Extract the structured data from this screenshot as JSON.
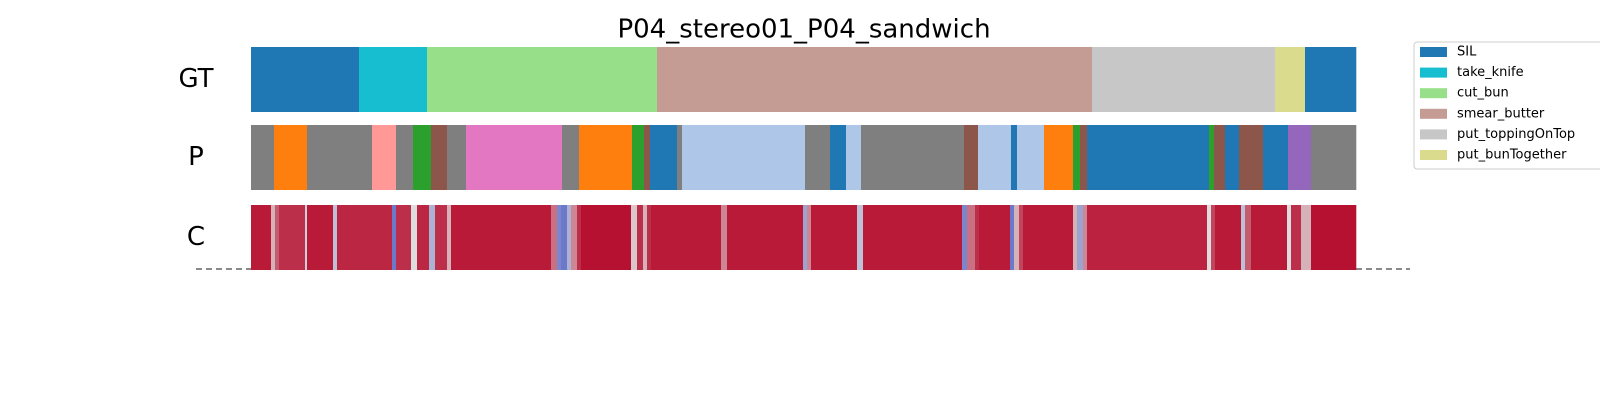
{
  "chart_data": {
    "type": "segmentation",
    "title": "P04_stereo01_P04_sandwich",
    "xlim": [
      0,
      1105
    ],
    "legend": [
      {
        "name": "SIL",
        "color": "#1f77b4"
      },
      {
        "name": "take_knife",
        "color": "#17becf"
      },
      {
        "name": "cut_bun",
        "color": "#98df8a"
      },
      {
        "name": "smear_butter",
        "color": "#c49c94"
      },
      {
        "name": "put_toppingOnTop",
        "color": "#c7c7c7"
      },
      {
        "name": "put_bunTogether",
        "color": "#dbdb8d"
      }
    ],
    "rows": [
      {
        "label": "GT",
        "boundaries": [
          0,
          108,
          176,
          406,
          841,
          1024,
          1054,
          1105
        ],
        "classes": [
          0,
          1,
          2,
          3,
          4,
          5,
          0
        ]
      },
      {
        "label": "P",
        "boundaries": [
          0,
          23,
          56,
          121,
          145,
          162,
          180,
          196,
          215,
          311,
          328,
          381,
          393,
          399,
          426,
          431,
          554,
          579,
          595,
          610,
          713,
          727,
          760,
          766,
          793,
          822,
          829,
          836,
          958,
          963,
          974,
          988,
          1012,
          1037,
          1060,
          1105
        ],
        "colors": [
          "#7f7f7f",
          "#ff7f0e",
          "#7f7f7f",
          "#ff9896",
          "#7f7f7f",
          "#2ca02c",
          "#8c564b",
          "#7f7f7f",
          "#e377c2",
          "#7f7f7f",
          "#ff7f0e",
          "#2ca02c",
          "#8c564b",
          "#1f77b4",
          "#7f7f7f",
          "#aec7e8",
          "#7f7f7f",
          "#1f77b4",
          "#aec7e8",
          "#7f7f7f",
          "#8c564b",
          "#aec7e8",
          "#1f77b4",
          "#aec7e8",
          "#ff7f0e",
          "#2ca02c",
          "#8c564b",
          "#1f77b4",
          "#2ca02c",
          "#8c564b",
          "#1f77b4",
          "#8c564b",
          "#1f77b4",
          "#9467bd",
          "#7f7f7f"
        ]
      },
      {
        "label": "C",
        "boundaries": [
          0,
          20,
          24,
          28,
          54,
          56,
          82,
          86,
          141,
          145,
          160,
          166,
          178,
          184,
          196,
          200,
          300,
          306,
          310,
          316,
          320,
          326,
          330,
          380,
          386,
          392,
          396,
          400,
          470,
          476,
          552,
          556,
          560,
          606,
          612,
          711,
          716,
          724,
          728,
          759,
          763,
          768,
          772,
          822,
          826,
          832,
          836,
          956,
          960,
          964,
          990,
          994,
          1000,
          1036,
          1040,
          1050,
          1060,
          1105
        ],
        "values": [
          0.95,
          0.6,
          0.8,
          0.9,
          0.45,
          0.95,
          0.4,
          0.92,
          0.15,
          0.9,
          0.5,
          0.92,
          0.35,
          0.9,
          0.6,
          0.95,
          0.75,
          0.2,
          0.15,
          0.35,
          0.7,
          0.9,
          0.97,
          0.55,
          0.9,
          0.6,
          0.9,
          0.95,
          0.7,
          0.95,
          0.3,
          0.7,
          0.95,
          0.4,
          0.95,
          0.2,
          0.75,
          0.9,
          0.95,
          0.15,
          0.6,
          0.85,
          0.95,
          0.6,
          0.3,
          0.7,
          0.93,
          0.5,
          0.85,
          0.95,
          0.4,
          0.8,
          0.95,
          0.5,
          0.9,
          0.6,
          0.97
        ],
        "colormap": [
          "#3b4cc0",
          "#dddddd",
          "#b40426"
        ]
      }
    ]
  }
}
